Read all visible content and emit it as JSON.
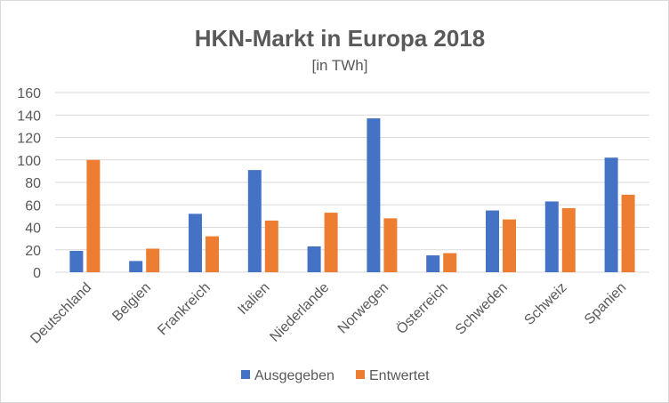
{
  "chart_data": {
    "type": "bar",
    "title": "HKN-Markt in Europa 2018",
    "subtitle": "[in TWh]",
    "categories": [
      "Deutschland",
      "Belgien",
      "Frankreich",
      "Italien",
      "Niederlande",
      "Norwegen",
      "Österreich",
      "Schweden",
      "Schweiz",
      "Spanien"
    ],
    "series": [
      {
        "name": "Ausgegeben",
        "color": "#4472c4",
        "values": [
          19,
          10,
          52,
          91,
          23,
          137,
          15,
          55,
          63,
          102
        ]
      },
      {
        "name": "Entwertet",
        "color": "#ed7d31",
        "values": [
          100,
          21,
          32,
          46,
          53,
          48,
          17,
          47,
          57,
          69
        ]
      }
    ],
    "ylim": [
      0,
      160
    ],
    "yticks": [
      "0",
      "20",
      "40",
      "60",
      "80",
      "100",
      "120",
      "140",
      "160"
    ],
    "grid": true,
    "legend_position": "bottom"
  }
}
